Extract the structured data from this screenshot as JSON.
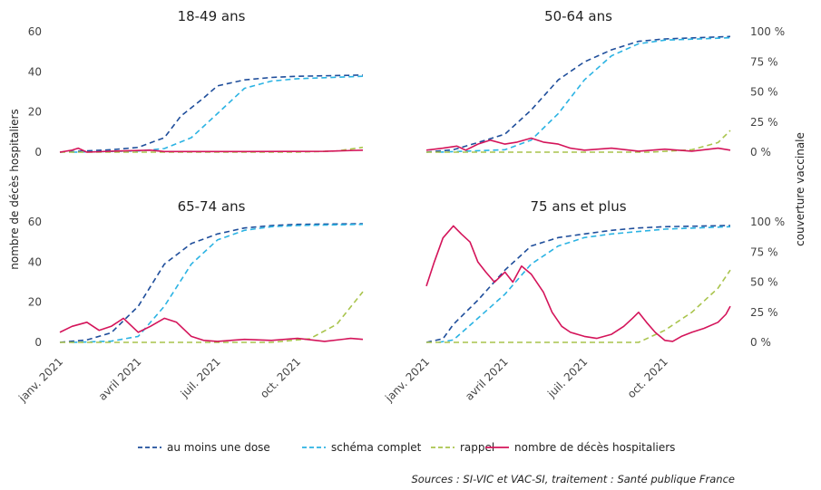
{
  "chart_data": {
    "type": "line",
    "y_left_label": "nombre de décès hospitaliers",
    "y_right_label": "couverture vaccinale",
    "x_ticks": [
      {
        "label": "janv. 2021",
        "date": "2021-01-01"
      },
      {
        "label": "avril 2021",
        "date": "2021-04-01"
      },
      {
        "label": "juil. 2021",
        "date": "2021-07-01"
      },
      {
        "label": "oct. 2021",
        "date": "2021-10-01"
      }
    ],
    "y_left_ticks": [
      0,
      20,
      40,
      60
    ],
    "y_right_ticks": [
      "0 %",
      "25 %",
      "50 %",
      "75 %",
      "100 %"
    ],
    "source": "Sources : SI-VIC et VAC-SI, traitement : Santé publique France",
    "colors": {
      "dose1": "#1f4e9b",
      "complet": "#2bb3e3",
      "rappel": "#a9c44c",
      "deces": "#d4145a"
    },
    "legend": [
      {
        "key": "dose1",
        "label": "au moins une dose"
      },
      {
        "key": "complet",
        "label": "schéma complet"
      },
      {
        "key": "rappel",
        "label": "rappel"
      },
      {
        "key": "deces",
        "label": "nombre de décès hospitaliers"
      }
    ],
    "panels": [
      {
        "title": "18-49 ans",
        "series": {
          "dose1": [
            [
              "2021-01-01",
              0
            ],
            [
              "2021-03-01",
              2
            ],
            [
              "2021-04-01",
              4
            ],
            [
              "2021-05-01",
              12
            ],
            [
              "2021-05-20",
              30
            ],
            [
              "2021-06-15",
              45
            ],
            [
              "2021-07-01",
              55
            ],
            [
              "2021-08-01",
              60
            ],
            [
              "2021-09-01",
              62
            ],
            [
              "2021-10-01",
              63
            ],
            [
              "2021-12-15",
              64
            ]
          ],
          "complet": [
            [
              "2021-01-15",
              0
            ],
            [
              "2021-04-01",
              1
            ],
            [
              "2021-05-01",
              3
            ],
            [
              "2021-06-01",
              12
            ],
            [
              "2021-07-01",
              32
            ],
            [
              "2021-08-01",
              53
            ],
            [
              "2021-09-01",
              59
            ],
            [
              "2021-10-01",
              61
            ],
            [
              "2021-12-15",
              63
            ]
          ],
          "rappel": [
            [
              "2021-01-01",
              0
            ],
            [
              "2021-10-01",
              0
            ],
            [
              "2021-11-15",
              1
            ],
            [
              "2021-12-15",
              4
            ]
          ],
          "deces": [
            [
              "2021-01-01",
              0
            ],
            [
              "2021-01-15",
              1
            ],
            [
              "2021-01-22",
              2
            ],
            [
              "2021-02-01",
              0
            ],
            [
              "2021-03-01",
              0.5
            ],
            [
              "2021-04-15",
              1
            ],
            [
              "2021-05-01",
              0.3
            ],
            [
              "2021-08-01",
              0.3
            ],
            [
              "2021-11-01",
              0.4
            ],
            [
              "2021-12-15",
              1
            ]
          ]
        }
      },
      {
        "title": "50-64 ans",
        "series": {
          "dose1": [
            [
              "2021-01-01",
              0
            ],
            [
              "2021-02-01",
              2
            ],
            [
              "2021-03-01",
              8
            ],
            [
              "2021-04-01",
              15
            ],
            [
              "2021-05-01",
              35
            ],
            [
              "2021-06-01",
              60
            ],
            [
              "2021-07-01",
              75
            ],
            [
              "2021-08-01",
              85
            ],
            [
              "2021-09-01",
              92
            ],
            [
              "2021-10-01",
              94
            ],
            [
              "2021-12-15",
              96
            ]
          ],
          "complet": [
            [
              "2021-01-15",
              0
            ],
            [
              "2021-04-01",
              2
            ],
            [
              "2021-05-01",
              10
            ],
            [
              "2021-06-01",
              32
            ],
            [
              "2021-07-01",
              60
            ],
            [
              "2021-08-01",
              80
            ],
            [
              "2021-09-01",
              90
            ],
            [
              "2021-10-01",
              93
            ],
            [
              "2021-12-15",
              95
            ]
          ],
          "rappel": [
            [
              "2021-01-01",
              0
            ],
            [
              "2021-09-15",
              0
            ],
            [
              "2021-11-01",
              2
            ],
            [
              "2021-12-01",
              8
            ],
            [
              "2021-12-15",
              18
            ]
          ],
          "deces": [
            [
              "2021-01-01",
              1
            ],
            [
              "2021-01-20",
              2
            ],
            [
              "2021-02-05",
              3
            ],
            [
              "2021-02-15",
              1
            ],
            [
              "2021-03-01",
              4
            ],
            [
              "2021-03-15",
              6
            ],
            [
              "2021-04-01",
              4
            ],
            [
              "2021-04-15",
              5
            ],
            [
              "2021-05-01",
              7
            ],
            [
              "2021-05-15",
              5
            ],
            [
              "2021-06-01",
              4
            ],
            [
              "2021-06-15",
              2
            ],
            [
              "2021-07-01",
              1
            ],
            [
              "2021-08-01",
              2
            ],
            [
              "2021-09-01",
              0.5
            ],
            [
              "2021-10-01",
              1.5
            ],
            [
              "2021-11-01",
              0.5
            ],
            [
              "2021-12-01",
              2
            ],
            [
              "2021-12-15",
              1
            ]
          ]
        }
      },
      {
        "title": "65-74 ans",
        "series": {
          "dose1": [
            [
              "2021-01-01",
              0
            ],
            [
              "2021-02-01",
              2
            ],
            [
              "2021-03-01",
              8
            ],
            [
              "2021-04-01",
              30
            ],
            [
              "2021-05-01",
              65
            ],
            [
              "2021-06-01",
              82
            ],
            [
              "2021-07-01",
              90
            ],
            [
              "2021-08-01",
              95
            ],
            [
              "2021-09-01",
              97
            ],
            [
              "2021-10-01",
              98
            ],
            [
              "2021-12-15",
              98.5
            ]
          ],
          "complet": [
            [
              "2021-01-15",
              0
            ],
            [
              "2021-03-01",
              1
            ],
            [
              "2021-04-01",
              5
            ],
            [
              "2021-05-01",
              30
            ],
            [
              "2021-06-01",
              65
            ],
            [
              "2021-07-01",
              85
            ],
            [
              "2021-08-01",
              93
            ],
            [
              "2021-09-01",
              96
            ],
            [
              "2021-10-01",
              97
            ],
            [
              "2021-12-15",
              98
            ]
          ],
          "rappel": [
            [
              "2021-01-01",
              0
            ],
            [
              "2021-09-01",
              0
            ],
            [
              "2021-10-15",
              3
            ],
            [
              "2021-11-15",
              15
            ],
            [
              "2021-12-15",
              42
            ]
          ],
          "deces": [
            [
              "2021-01-01",
              5
            ],
            [
              "2021-01-15",
              8
            ],
            [
              "2021-02-01",
              10
            ],
            [
              "2021-02-15",
              6
            ],
            [
              "2021-03-01",
              8
            ],
            [
              "2021-03-15",
              12
            ],
            [
              "2021-04-01",
              5
            ],
            [
              "2021-04-15",
              8
            ],
            [
              "2021-05-01",
              12
            ],
            [
              "2021-05-15",
              10
            ],
            [
              "2021-06-01",
              3
            ],
            [
              "2021-06-15",
              1
            ],
            [
              "2021-07-01",
              0.5
            ],
            [
              "2021-08-01",
              1.5
            ],
            [
              "2021-09-01",
              1
            ],
            [
              "2021-10-01",
              2
            ],
            [
              "2021-11-01",
              0.5
            ],
            [
              "2021-12-01",
              2
            ],
            [
              "2021-12-15",
              1.5
            ]
          ]
        }
      },
      {
        "title": "75 ans et plus",
        "series": {
          "dose1": [
            [
              "2021-01-01",
              0
            ],
            [
              "2021-01-20",
              3
            ],
            [
              "2021-02-01",
              15
            ],
            [
              "2021-03-01",
              35
            ],
            [
              "2021-04-01",
              60
            ],
            [
              "2021-05-01",
              80
            ],
            [
              "2021-06-01",
              87
            ],
            [
              "2021-07-01",
              90
            ],
            [
              "2021-08-01",
              93
            ],
            [
              "2021-09-01",
              95
            ],
            [
              "2021-10-01",
              96
            ],
            [
              "2021-12-15",
              97
            ]
          ],
          "complet": [
            [
              "2021-01-15",
              0
            ],
            [
              "2021-02-01",
              2
            ],
            [
              "2021-03-01",
              20
            ],
            [
              "2021-04-01",
              40
            ],
            [
              "2021-05-01",
              65
            ],
            [
              "2021-06-01",
              80
            ],
            [
              "2021-07-01",
              87
            ],
            [
              "2021-08-01",
              90
            ],
            [
              "2021-09-01",
              92
            ],
            [
              "2021-10-01",
              94
            ],
            [
              "2021-12-15",
              96
            ]
          ],
          "rappel": [
            [
              "2021-01-01",
              0
            ],
            [
              "2021-09-01",
              0
            ],
            [
              "2021-10-01",
              10
            ],
            [
              "2021-11-01",
              25
            ],
            [
              "2021-12-01",
              45
            ],
            [
              "2021-12-15",
              60
            ]
          ],
          "deces": [
            [
              "2021-01-01",
              28
            ],
            [
              "2021-01-10",
              40
            ],
            [
              "2021-01-20",
              52
            ],
            [
              "2021-02-01",
              58
            ],
            [
              "2021-02-10",
              54
            ],
            [
              "2021-02-20",
              50
            ],
            [
              "2021-03-01",
              40
            ],
            [
              "2021-03-10",
              35
            ],
            [
              "2021-03-20",
              30
            ],
            [
              "2021-04-01",
              35
            ],
            [
              "2021-04-10",
              30
            ],
            [
              "2021-04-20",
              38
            ],
            [
              "2021-05-01",
              34
            ],
            [
              "2021-05-15",
              25
            ],
            [
              "2021-05-25",
              15
            ],
            [
              "2021-06-05",
              8
            ],
            [
              "2021-06-15",
              5
            ],
            [
              "2021-07-01",
              3
            ],
            [
              "2021-07-15",
              2
            ],
            [
              "2021-08-01",
              4
            ],
            [
              "2021-08-15",
              8
            ],
            [
              "2021-08-25",
              12
            ],
            [
              "2021-09-01",
              15
            ],
            [
              "2021-09-10",
              10
            ],
            [
              "2021-09-20",
              5
            ],
            [
              "2021-10-01",
              1
            ],
            [
              "2021-10-10",
              0.5
            ],
            [
              "2021-10-20",
              3
            ],
            [
              "2021-11-01",
              5
            ],
            [
              "2021-11-15",
              7
            ],
            [
              "2021-12-01",
              10
            ],
            [
              "2021-12-10",
              14
            ],
            [
              "2021-12-15",
              18
            ]
          ]
        }
      }
    ]
  }
}
